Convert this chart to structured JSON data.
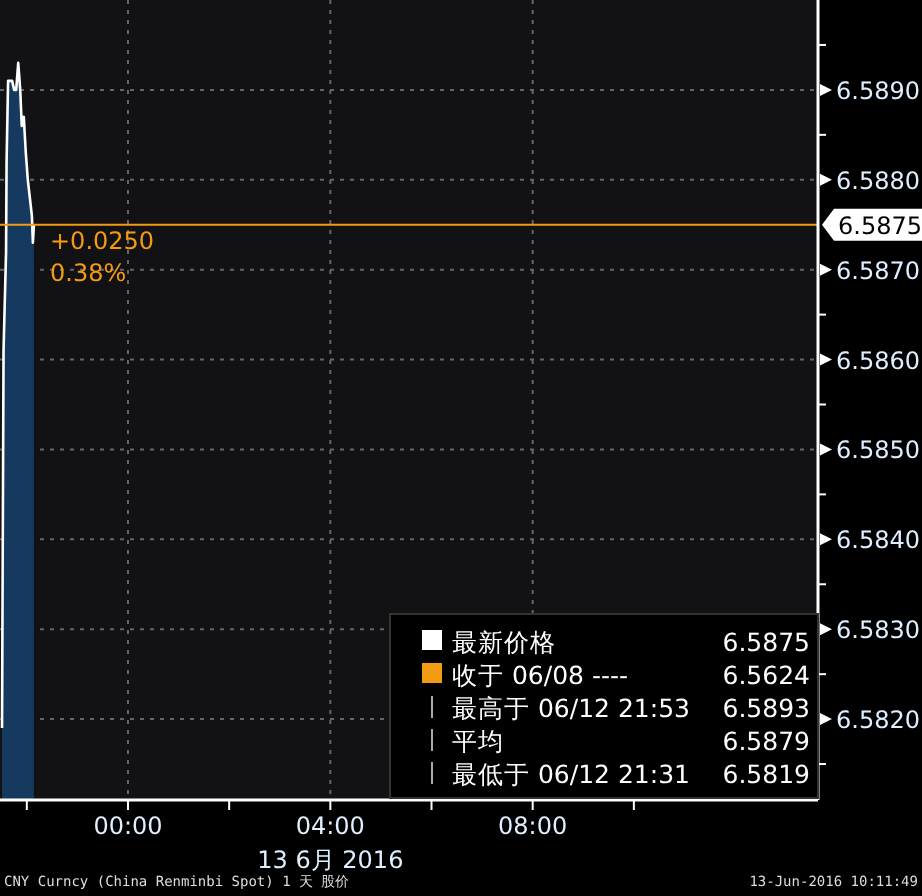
{
  "chart_data": {
    "type": "area",
    "xlabel": "13 6月 2016",
    "x": [
      -2.49,
      -2.46,
      -2.41,
      -2.4,
      -2.37,
      -2.33,
      -2.29,
      -2.25,
      -2.21,
      -2.17,
      -2.13,
      -2.1,
      -2.06,
      -2.02,
      -1.98,
      -1.94,
      -1.9,
      -1.88,
      -1.86
    ],
    "series": [
      {
        "name": "最新价格",
        "color": "#163a5f",
        "values": [
          6.5819,
          6.5861,
          6.5872,
          6.5882,
          6.5891,
          6.5891,
          6.5891,
          6.589,
          6.589,
          6.5893,
          6.589,
          6.5886,
          6.5887,
          6.5883,
          6.588,
          6.5878,
          6.5876,
          6.5873,
          6.5875
        ]
      }
    ],
    "xlim": [
      -2.53,
      13.64
    ],
    "ylim": [
      6.5811,
      6.59
    ],
    "xticks": [
      {
        "value": -2,
        "label": null
      },
      {
        "value": 0,
        "label": "00:00"
      },
      {
        "value": 2,
        "label": null
      },
      {
        "value": 4,
        "label": "04:00"
      },
      {
        "value": 6,
        "label": null
      },
      {
        "value": 8,
        "label": "08:00"
      },
      {
        "value": 10,
        "label": null
      }
    ],
    "yticks": [
      {
        "value": 6.5815,
        "label": null
      },
      {
        "value": 6.582,
        "label": "6.5820"
      },
      {
        "value": 6.5825,
        "label": null
      },
      {
        "value": 6.583,
        "label": "6.5830"
      },
      {
        "value": 6.5835,
        "label": null
      },
      {
        "value": 6.584,
        "label": "6.5840"
      },
      {
        "value": 6.5845,
        "label": null
      },
      {
        "value": 6.585,
        "label": "6.5850"
      },
      {
        "value": 6.5855,
        "label": null
      },
      {
        "value": 6.586,
        "label": "6.5860"
      },
      {
        "value": 6.5865,
        "label": null
      },
      {
        "value": 6.587,
        "label": "6.5870"
      },
      {
        "value": 6.588,
        "label": "6.5880"
      },
      {
        "value": 6.5885,
        "label": null
      },
      {
        "value": 6.589,
        "label": "6.5890"
      },
      {
        "value": 6.5895,
        "label": null
      }
    ],
    "ref_lines": [
      {
        "axis": "y",
        "value": 6.5875,
        "label": "6.5875",
        "color": "#f39c12"
      }
    ],
    "grid": true,
    "legend": "bottom right",
    "annotations": [
      "6.5875",
      "收于 06/08 ---- 6.5624",
      "最高于 06/12 21:53 6.5893",
      "平均 6.5879",
      "最低于 06/12 21:31 6.5819",
      "+0.0250",
      "0.38%",
      "CNY Curncy (China Renminbi Spot) 1 天 股价",
      "13-Jun-2016 10:11:49"
    ]
  }
}
